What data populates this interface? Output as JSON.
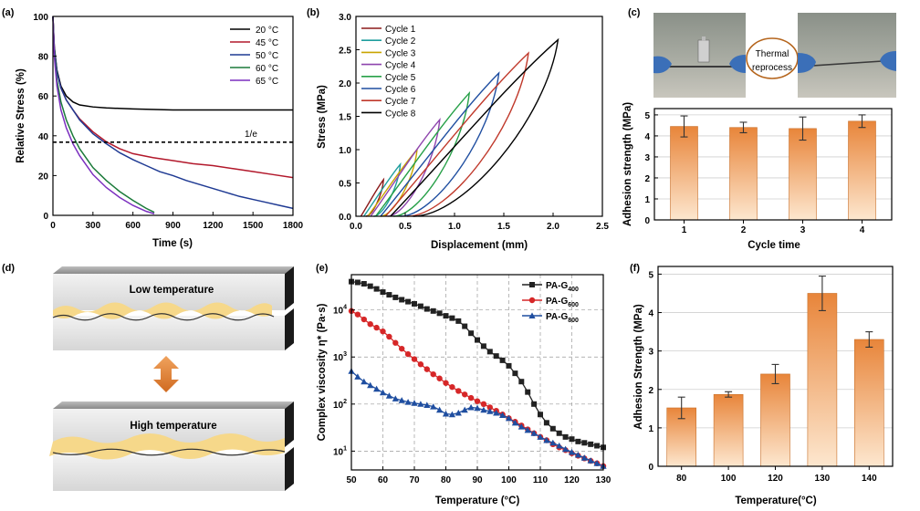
{
  "chart_data": [
    {
      "panel": "(a)",
      "type": "line",
      "xlabel": "Time (s)",
      "ylabel": "Relative Stress (%)",
      "xlim": [
        0,
        1800
      ],
      "ylim": [
        0,
        100
      ],
      "xticks": [
        0,
        300,
        600,
        900,
        1200,
        1500,
        1800
      ],
      "yticks": [
        0,
        20,
        40,
        60,
        80,
        100
      ],
      "annotation": {
        "text": "1/e",
        "y": 36.8
      },
      "legend_position": "top-right",
      "series": [
        {
          "name": "20 °C",
          "color": "#000000",
          "x": [
            0,
            10,
            30,
            60,
            100,
            150,
            200,
            300,
            400,
            600,
            900,
            1200,
            1500,
            1800
          ],
          "y": [
            100,
            85,
            73,
            65,
            60,
            57,
            55.5,
            54.5,
            54,
            53.5,
            53,
            53,
            53,
            53
          ]
        },
        {
          "name": "45 °C",
          "color": "#b2182b",
          "x": [
            0,
            10,
            30,
            60,
            100,
            150,
            200,
            300,
            400,
            500,
            600,
            750,
            900,
            1050,
            1200,
            1350,
            1500,
            1650,
            1800
          ],
          "y": [
            100,
            84,
            72,
            64,
            58,
            53,
            48.5,
            42,
            37,
            33.5,
            31,
            29,
            27.5,
            26,
            25,
            23.5,
            22,
            20.5,
            19
          ]
        },
        {
          "name": "50 °C",
          "color": "#1f3a93",
          "x": [
            0,
            10,
            30,
            60,
            100,
            150,
            200,
            300,
            400,
            500,
            600,
            700,
            800,
            900,
            1000,
            1100,
            1200,
            1300,
            1400,
            1500,
            1600,
            1700,
            1800
          ],
          "y": [
            100,
            84,
            72,
            64,
            58,
            53,
            48,
            41,
            36,
            31.5,
            28,
            25,
            22,
            20,
            17.5,
            15.5,
            13.5,
            11.5,
            9.5,
            8,
            6.5,
            5,
            3.5
          ]
        },
        {
          "name": "60 °C",
          "color": "#1b7a3a",
          "x": [
            0,
            10,
            30,
            60,
            100,
            150,
            200,
            300,
            400,
            500,
            600,
            700,
            760
          ],
          "y": [
            100,
            82,
            68,
            57,
            48,
            40,
            33.5,
            24,
            17.5,
            12,
            7.5,
            3.5,
            1.5
          ]
        },
        {
          "name": "65 °C",
          "color": "#7b2fbf",
          "x": [
            0,
            10,
            30,
            60,
            100,
            150,
            200,
            300,
            400,
            500,
            600,
            700,
            760
          ],
          "y": [
            100,
            80,
            65,
            53,
            44,
            36,
            30,
            20.5,
            14,
            9,
            5,
            2,
            0.8
          ]
        }
      ]
    },
    {
      "panel": "(b)",
      "type": "line",
      "xlabel": "Displacement (mm)",
      "ylabel": "Stress (MPa)",
      "xlim": [
        0,
        2.5
      ],
      "ylim": [
        0,
        3.0
      ],
      "xticks": [
        "0.0",
        "0.5",
        "1.0",
        "1.5",
        "2.0",
        "2.5"
      ],
      "yticks": [
        "0.0",
        "0.5",
        "1.0",
        "1.5",
        "2.0",
        "2.5",
        "3.0"
      ],
      "legend_position": "top-left",
      "series": [
        {
          "name": "Cycle 1",
          "color": "#8b1a1a",
          "x0": 0.05,
          "xpeak": 0.28,
          "ypeak": 0.55,
          "xend": 0.1
        },
        {
          "name": "Cycle 2",
          "color": "#1f9e9e",
          "x0": 0.08,
          "xpeak": 0.45,
          "ypeak": 0.78,
          "xend": 0.18
        },
        {
          "name": "Cycle 3",
          "color": "#c9a400",
          "x0": 0.12,
          "xpeak": 0.62,
          "ypeak": 1.0,
          "xend": 0.25
        },
        {
          "name": "Cycle 4",
          "color": "#8e44ad",
          "x0": 0.15,
          "xpeak": 0.85,
          "ypeak": 1.45,
          "xend": 0.32
        },
        {
          "name": "Cycle 5",
          "color": "#27a048",
          "x0": 0.2,
          "xpeak": 1.15,
          "ypeak": 1.85,
          "xend": 0.38
        },
        {
          "name": "Cycle 6",
          "color": "#1f4ea0",
          "x0": 0.25,
          "xpeak": 1.45,
          "ypeak": 2.15,
          "xend": 0.45
        },
        {
          "name": "Cycle 7",
          "color": "#c0392b",
          "x0": 0.3,
          "xpeak": 1.75,
          "ypeak": 2.45,
          "xend": 0.52
        },
        {
          "name": "Cycle 8",
          "color": "#000000",
          "x0": 0.35,
          "xpeak": 2.05,
          "ypeak": 2.65,
          "xend": 0.58
        }
      ]
    },
    {
      "panel": "(c)",
      "type": "bar",
      "xlabel": "Cycle time",
      "ylabel": "Adhesion strength (MPa)",
      "photo_label": "Thermal reprocess",
      "categories": [
        "1",
        "2",
        "3",
        "4"
      ],
      "values": [
        4.45,
        4.4,
        4.35,
        4.7
      ],
      "errors": [
        0.5,
        0.25,
        0.55,
        0.3
      ],
      "ylim": [
        0,
        5.3
      ],
      "yticks": [
        0,
        1,
        2,
        3,
        4,
        5
      ]
    },
    {
      "panel": "(d)",
      "type": "diagram",
      "top_label": "Low temperature",
      "bottom_label": "High temperature"
    },
    {
      "panel": "(e)",
      "type": "line",
      "xlabel": "Temperature (°C)",
      "ylabel": "Complex viscosity η* (Pa·s)",
      "xlim": [
        50,
        130
      ],
      "ylog": true,
      "ylim_log10": [
        0.6,
        4.75
      ],
      "xticks": [
        50,
        60,
        70,
        80,
        90,
        100,
        110,
        120,
        130
      ],
      "yticks_log10": [
        1,
        2,
        3,
        4
      ],
      "legend_position": "top-right",
      "series": [
        {
          "name": "PA-G400",
          "label": "PA-G",
          "sub": "400",
          "color": "#222222",
          "marker": "square",
          "x": [
            50,
            52,
            54,
            56,
            58,
            60,
            62,
            64,
            66,
            68,
            70,
            72,
            74,
            76,
            78,
            80,
            82,
            84,
            86,
            88,
            90,
            92,
            94,
            96,
            98,
            100,
            102,
            104,
            106,
            108,
            110,
            112,
            114,
            116,
            118,
            120,
            122,
            124,
            126,
            128,
            130
          ],
          "y": [
            40000,
            38500,
            36000,
            32000,
            28000,
            24000,
            21000,
            18500,
            16500,
            15000,
            13500,
            12000,
            10500,
            9500,
            8500,
            7500,
            6700,
            5800,
            4500,
            3200,
            2300,
            1700,
            1300,
            1050,
            850,
            650,
            450,
            300,
            180,
            100,
            60,
            40,
            30,
            24,
            20,
            18,
            16,
            15,
            14,
            13,
            12
          ]
        },
        {
          "name": "PA-G600",
          "label": "PA-G",
          "sub": "600",
          "color": "#d62728",
          "marker": "circle",
          "x": [
            50,
            52,
            54,
            56,
            58,
            60,
            62,
            64,
            66,
            68,
            70,
            72,
            74,
            76,
            78,
            80,
            82,
            84,
            86,
            88,
            90,
            92,
            94,
            96,
            98,
            100,
            102,
            104,
            106,
            108,
            110,
            112,
            114,
            116,
            118,
            120,
            122,
            124,
            126,
            128,
            130
          ],
          "y": [
            9500,
            8000,
            6300,
            5000,
            4200,
            3500,
            2700,
            2000,
            1500,
            1150,
            900,
            700,
            550,
            430,
            350,
            280,
            230,
            190,
            160,
            135,
            115,
            100,
            85,
            72,
            60,
            50,
            42,
            35,
            29,
            24,
            20,
            17,
            14,
            12,
            10.5,
            9,
            8,
            7,
            6.2,
            5.5,
            4.8
          ]
        },
        {
          "name": "PA-G800",
          "label": "PA-G",
          "sub": "800",
          "color": "#1f4ea0",
          "marker": "triangle",
          "x": [
            50,
            52,
            54,
            56,
            58,
            60,
            62,
            64,
            66,
            68,
            70,
            72,
            74,
            76,
            78,
            80,
            82,
            84,
            86,
            88,
            90,
            92,
            94,
            96,
            98,
            100,
            102,
            104,
            106,
            108,
            110,
            112,
            114,
            116,
            118,
            120,
            122,
            124,
            126,
            128,
            130
          ],
          "y": [
            500,
            380,
            300,
            250,
            210,
            175,
            150,
            130,
            120,
            110,
            105,
            100,
            95,
            88,
            75,
            62,
            60,
            65,
            75,
            85,
            82,
            75,
            70,
            65,
            58,
            50,
            40,
            33,
            28,
            24,
            20,
            17,
            15,
            13,
            11,
            9.5,
            8.3,
            7.2,
            6.3,
            5.5,
            4.8
          ]
        }
      ]
    },
    {
      "panel": "(f)",
      "type": "bar",
      "xlabel": "Temperature(°C)",
      "ylabel": "Adhesion Strength (MPa)",
      "categories": [
        "80",
        "100",
        "120",
        "130",
        "140"
      ],
      "values": [
        1.52,
        1.87,
        2.4,
        4.5,
        3.3
      ],
      "errors": [
        0.28,
        0.07,
        0.25,
        0.45,
        0.2
      ],
      "ylim": [
        0,
        5.2
      ],
      "yticks": [
        0,
        1,
        2,
        3,
        4,
        5
      ]
    }
  ]
}
